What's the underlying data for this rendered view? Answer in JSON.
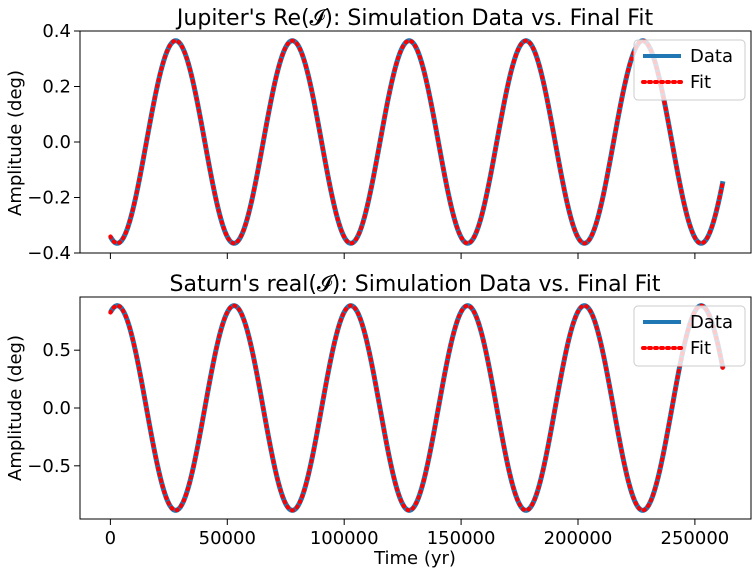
{
  "figure": {
    "xlabel": "Time (yr)"
  },
  "chart_data": [
    {
      "type": "line",
      "title": "Jupiter's Re(𝓘): Simulation Data vs. Final Fit",
      "xlabel": "",
      "ylabel": "Amplitude (deg)",
      "xlim": [
        -13000,
        274000
      ],
      "ylim": [
        -0.4,
        0.4
      ],
      "yticks": [
        -0.4,
        -0.2,
        0.0,
        0.2,
        0.4
      ],
      "ytick_labels": [
        "−0.4",
        "−0.2",
        "0.0",
        "0.2",
        "0.4"
      ],
      "xticks": [
        0,
        50000,
        100000,
        150000,
        200000,
        250000
      ],
      "xtick_labels": [],
      "legend": {
        "location": "upper right",
        "entries": [
          "Data",
          "Fit"
        ]
      },
      "series": [
        {
          "name": "Data",
          "color": "#1f77b4",
          "style": "solid",
          "function": {
            "amplitude": 0.365,
            "period": 49950,
            "phase_rad": -1.939,
            "x_start": 0,
            "x_end": 262000
          }
        },
        {
          "name": "Fit",
          "color": "#ff0000",
          "style": "dotted",
          "function": {
            "amplitude": 0.365,
            "period": 49950,
            "phase_rad": -1.939,
            "x_start": 0,
            "x_end": 262000
          }
        }
      ]
    },
    {
      "type": "line",
      "title": "Saturn's real(𝓘): Simulation Data vs. Final Fit",
      "xlabel": "Time (yr)",
      "ylabel": "Amplitude (deg)",
      "xlim": [
        -13000,
        274000
      ],
      "ylim": [
        -0.96,
        0.96
      ],
      "yticks": [
        -0.5,
        0.0,
        0.5
      ],
      "ytick_labels": [
        "−0.5",
        "0.0",
        "0.5"
      ],
      "xticks": [
        0,
        50000,
        100000,
        150000,
        200000,
        250000
      ],
      "xtick_labels": [
        "0",
        "50000",
        "100000",
        "150000",
        "200000",
        "250000"
      ],
      "legend": {
        "location": "upper right",
        "entries": [
          "Data",
          "Fit"
        ]
      },
      "series": [
        {
          "name": "Data",
          "color": "#1f77b4",
          "style": "solid",
          "function": {
            "amplitude": 0.885,
            "period": 49950,
            "phase_rad": 1.203,
            "x_start": 0,
            "x_end": 262000
          }
        },
        {
          "name": "Fit",
          "color": "#ff0000",
          "style": "dotted",
          "function": {
            "amplitude": 0.885,
            "period": 49950,
            "phase_rad": 1.203,
            "x_start": 0,
            "x_end": 262000
          }
        }
      ]
    }
  ]
}
